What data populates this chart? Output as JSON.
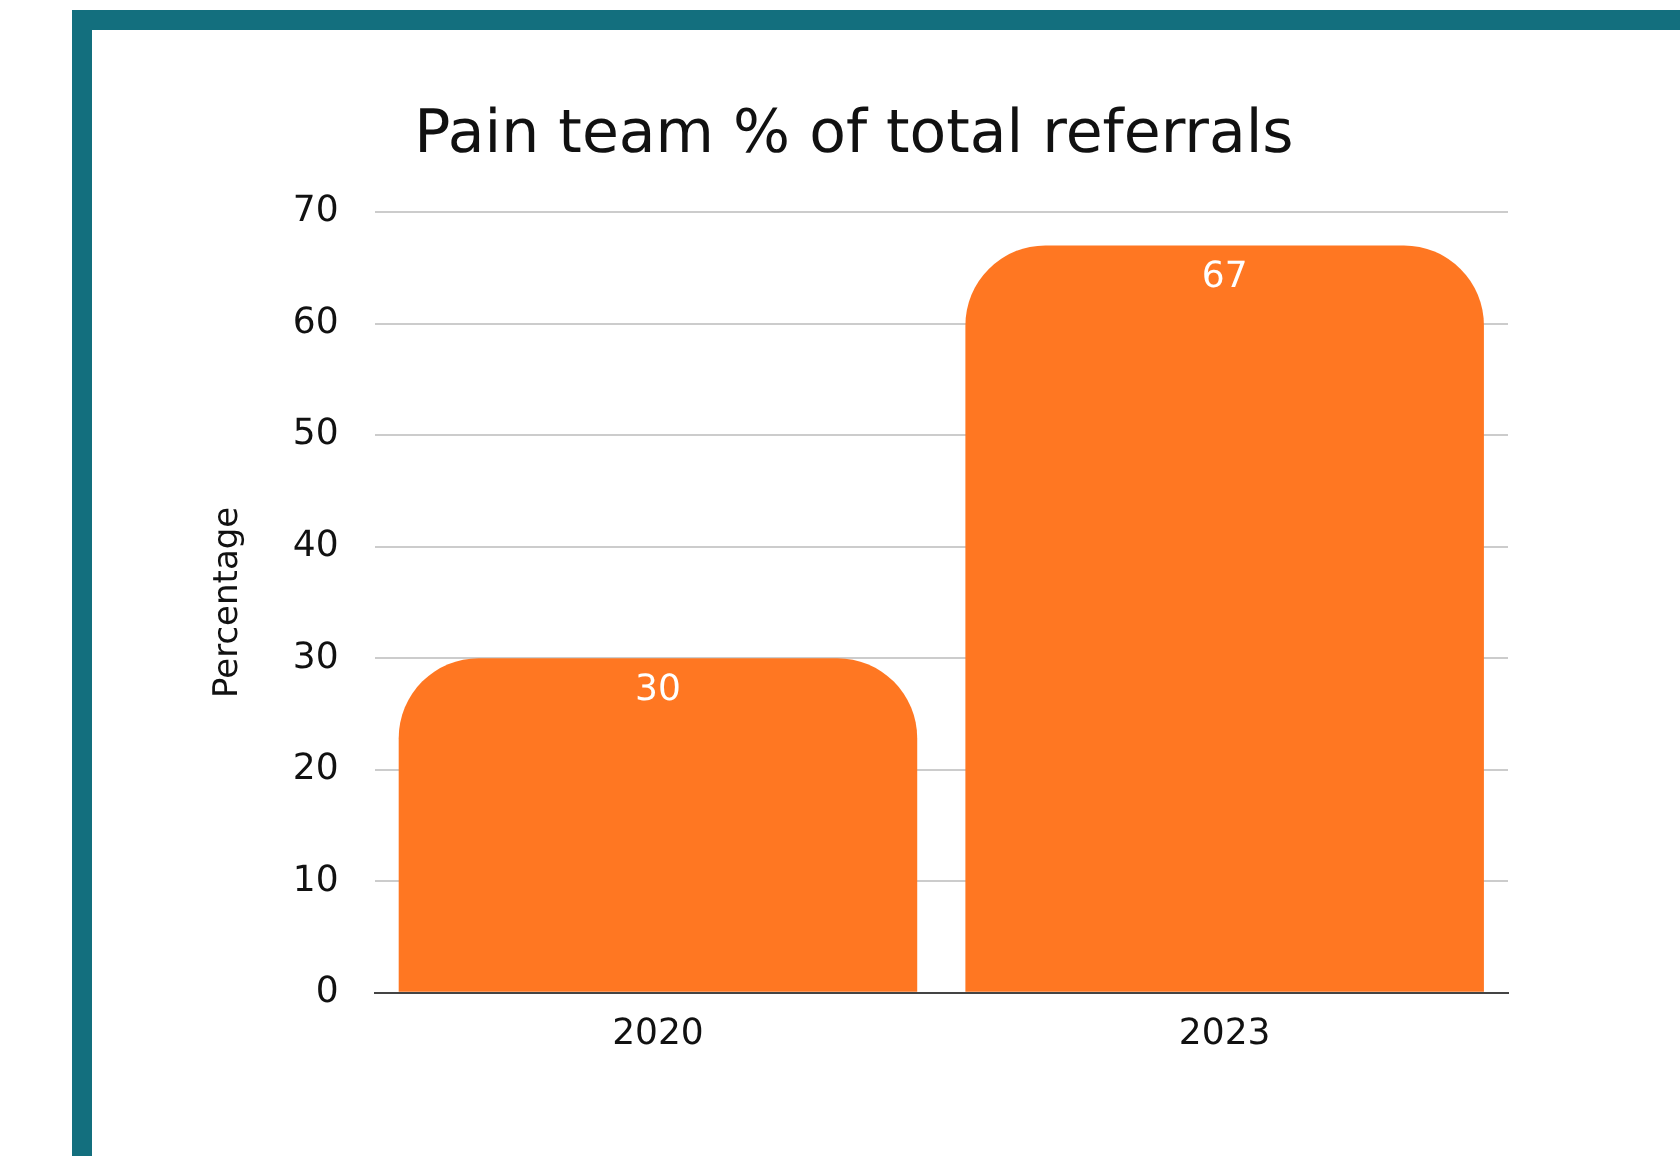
{
  "chart_data": {
    "type": "bar",
    "title": "Pain team % of total referrals",
    "ylabel": "Percentage",
    "categories": [
      "2020",
      "2023"
    ],
    "values": [
      30,
      67
    ],
    "color": "#ff7722",
    "ylim": [
      0,
      70
    ],
    "yticks": [
      0,
      10,
      20,
      30,
      40,
      50,
      60,
      70
    ],
    "grid": "y",
    "data_labels": true
  }
}
